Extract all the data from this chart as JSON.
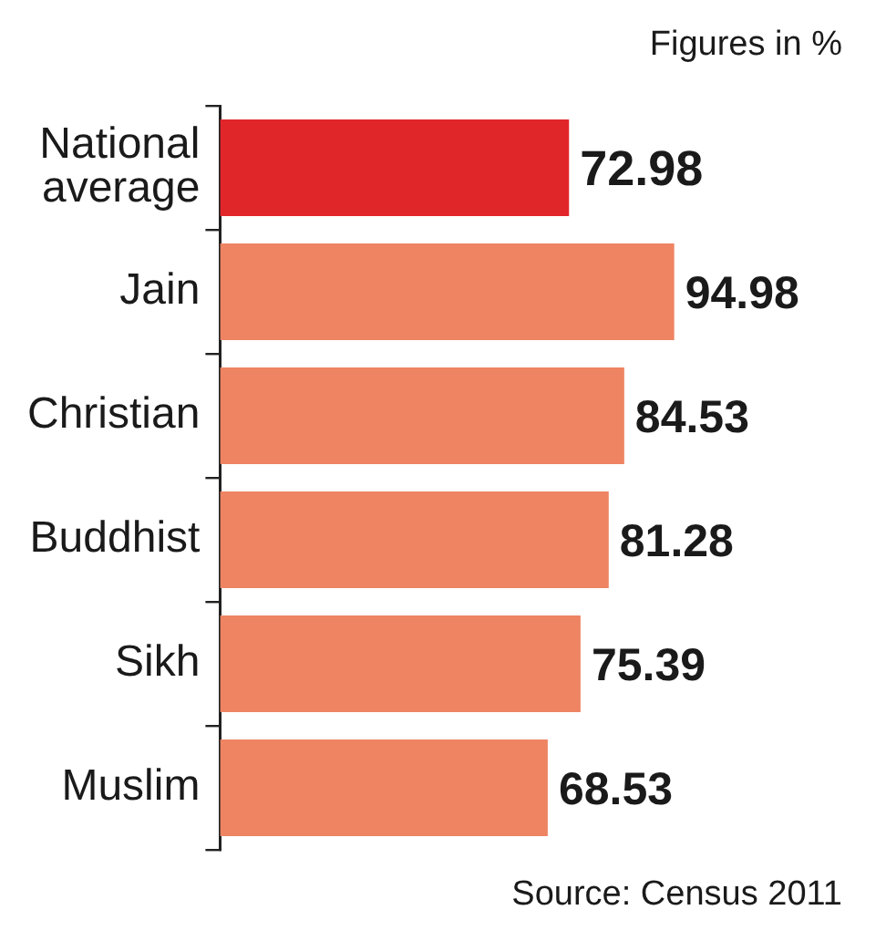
{
  "chart_data": {
    "type": "bar",
    "orientation": "horizontal",
    "categories": [
      "National average",
      "Jain",
      "Christian",
      "Buddhist",
      "Sikh",
      "Muslim"
    ],
    "values": [
      72.98,
      94.98,
      84.53,
      81.28,
      75.39,
      68.53
    ],
    "colors": [
      "#e1262a",
      "#ee8462",
      "#ee8462",
      "#ee8462",
      "#ee8462",
      "#ee8462"
    ],
    "data_labels": true,
    "legend": false,
    "annotations": [
      "Figures in %",
      "Source: Census 2011"
    ]
  }
}
